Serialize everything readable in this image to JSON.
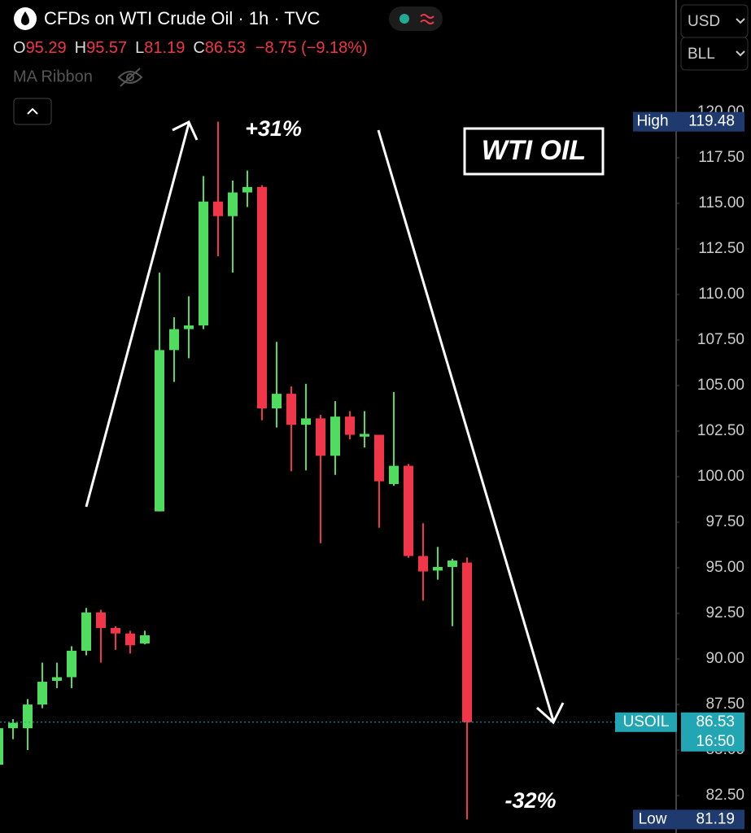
{
  "header": {
    "title": "CFDs on WTI Crude Oil · 1h · TVC",
    "ohlc": [
      {
        "label": "O",
        "value": 95.29
      },
      {
        "label": "H",
        "value": 95.57
      },
      {
        "label": "L",
        "value": 81.19
      },
      {
        "label": "C",
        "value": 86.53
      }
    ],
    "change": "−8.75 (−9.18%)",
    "indicator": "MA Ribbon"
  },
  "controls": {
    "currency": "USD",
    "unit": "BLL"
  },
  "chart_data": {
    "type": "candlestick",
    "open": [
      84.2,
      86.2,
      86.2,
      87.5,
      88.8,
      89.0,
      90.45,
      92.55,
      91.7,
      91.4,
      90.85,
      98.1,
      106.95,
      108.1,
      108.3,
      115.1,
      114.3,
      115.6,
      115.9,
      103.75,
      104.55,
      102.85,
      103.2,
      101.15,
      103.3,
      102.2,
      102.3,
      99.6,
      100.6,
      95.65,
      94.85,
      95.05,
      95.29
    ],
    "high": [
      86.4,
      86.7,
      87.8,
      89.8,
      89.8,
      90.7,
      92.8,
      92.7,
      91.8,
      91.55,
      91.55,
      111.2,
      108.75,
      109.9,
      116.5,
      119.48,
      116.25,
      116.8,
      116.0,
      107.4,
      104.95,
      105.1,
      103.4,
      104.15,
      103.6,
      103.6,
      102.3,
      104.65,
      100.7,
      97.45,
      96.15,
      95.5,
      95.57
    ],
    "low": [
      84.1,
      85.6,
      85.0,
      87.3,
      88.4,
      88.4,
      90.2,
      89.8,
      90.5,
      90.3,
      90.8,
      98.1,
      105.2,
      106.5,
      108.1,
      112.1,
      111.2,
      114.8,
      103.1,
      102.7,
      100.3,
      100.35,
      96.35,
      100.1,
      102.05,
      101.6,
      97.2,
      99.5,
      95.55,
      93.2,
      94.35,
      91.8,
      81.19
    ],
    "close": [
      86.2,
      86.5,
      87.5,
      88.75,
      89.0,
      90.45,
      92.55,
      91.7,
      91.4,
      90.75,
      91.3,
      106.95,
      108.1,
      108.3,
      115.1,
      114.3,
      115.6,
      115.9,
      103.75,
      104.55,
      102.85,
      103.2,
      101.15,
      103.3,
      102.3,
      102.35,
      99.75,
      100.6,
      95.65,
      94.8,
      95.05,
      95.4,
      86.53
    ],
    "up_color": "#4fdc5f",
    "down_color": "#f2364a",
    "ylim": [
      80.45,
      126.16
    ],
    "yticks": [
      {
        "value": 82.5,
        "label": "82.50"
      },
      {
        "value": 85,
        "label": "85.00"
      },
      {
        "value": 87.5,
        "label": "87.50"
      },
      {
        "value": 90,
        "label": "90.00"
      },
      {
        "value": 92.5,
        "label": "92.50"
      },
      {
        "value": 95,
        "label": "95.00"
      },
      {
        "value": 97.5,
        "label": "97.50"
      },
      {
        "value": 100,
        "label": "100.00"
      },
      {
        "value": 102.5,
        "label": "102.50"
      },
      {
        "value": 105,
        "label": "105.00"
      },
      {
        "value": 107.5,
        "label": "107.50"
      },
      {
        "value": 110,
        "label": "110.00"
      },
      {
        "value": 112.5,
        "label": "112.50"
      },
      {
        "value": 115,
        "label": "115.00"
      },
      {
        "value": 117.5,
        "label": "117.50"
      },
      {
        "value": 120,
        "label": "120.00"
      }
    ],
    "price_tags": [
      {
        "name": "High",
        "value": 119.48,
        "color": "#1e3a6e"
      },
      {
        "name": "USOIL",
        "value": 86.53,
        "time": "16:50",
        "color": "#22a6b3"
      },
      {
        "name": "Low",
        "value": 81.19,
        "color": "#1e3a6e"
      }
    ],
    "annotations": [
      "+31%",
      "-32%"
    ],
    "label": "WTI OIL"
  }
}
